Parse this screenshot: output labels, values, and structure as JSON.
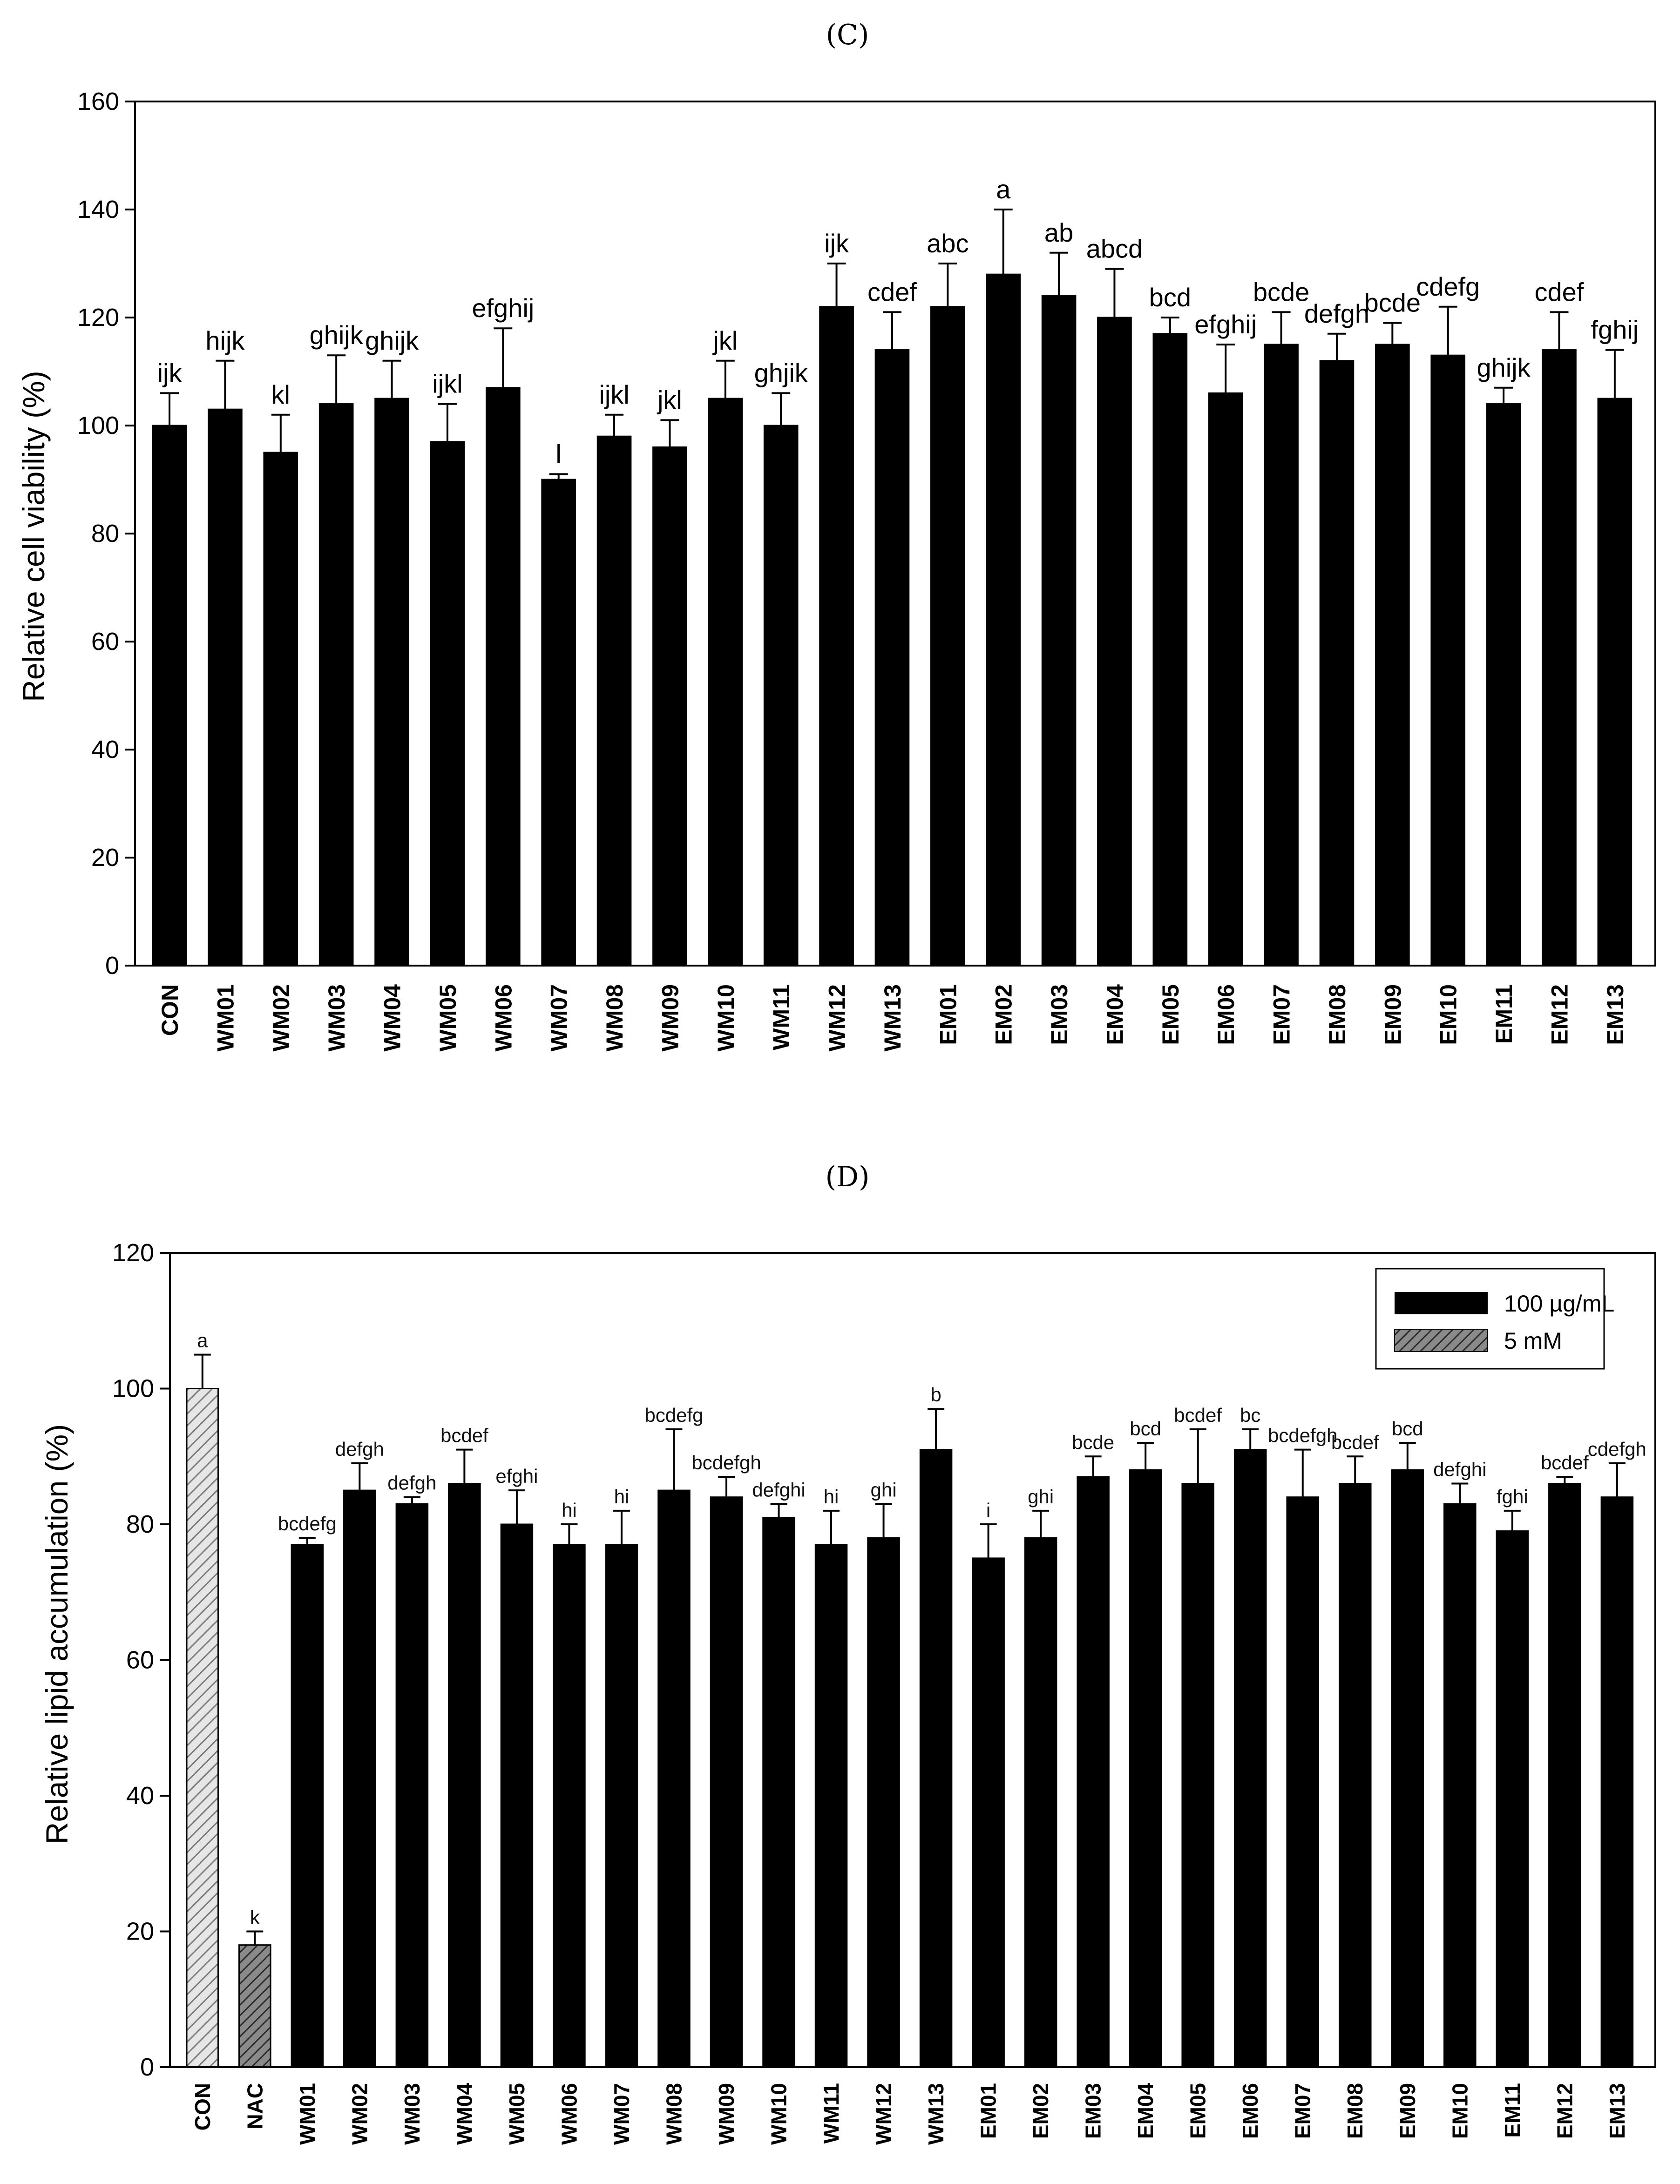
{
  "chart_data": [
    {
      "type": "bar",
      "panel": "(C)",
      "title": "",
      "xlabel": "",
      "ylabel": "Relative cell viability (%)",
      "ylim": [
        0,
        160
      ],
      "yticks": [
        0,
        20,
        40,
        60,
        80,
        100,
        120,
        140,
        160
      ],
      "grid": false,
      "legend": "none",
      "categories": [
        "CON",
        "WM01",
        "WM02",
        "WM03",
        "WM04",
        "WM05",
        "WM06",
        "WM07",
        "WM08",
        "WM09",
        "WM10",
        "WM11",
        "WM12",
        "WM13",
        "EM01",
        "EM02",
        "EM03",
        "EM04",
        "EM05",
        "EM06",
        "EM07",
        "EM08",
        "EM09",
        "EM10",
        "EM11",
        "EM12",
        "EM13"
      ],
      "values": [
        100,
        103,
        95,
        104,
        105,
        97,
        107,
        90,
        98,
        96,
        105,
        100,
        122,
        114,
        122,
        128,
        124,
        120,
        117,
        106,
        115,
        112,
        115,
        113,
        104,
        114,
        105
      ],
      "errors": [
        6,
        9,
        7,
        9,
        7,
        7,
        11,
        1,
        4,
        5,
        7,
        6,
        8,
        7,
        8,
        12,
        8,
        9,
        3,
        9,
        6,
        5,
        4,
        9,
        3,
        7,
        9
      ],
      "significance": [
        "ijk",
        "hijk",
        "kl",
        "ghijk",
        "ghijk",
        "ijkl",
        "efghij",
        "l",
        "ijkl",
        "jkl",
        "jkl",
        "ghjik",
        "ijk",
        "cdef",
        "abc",
        "a",
        "ab",
        "abcd",
        "bcd",
        "efghij",
        "bcde",
        "defgh",
        "bcde",
        "cdefg",
        "ghijk",
        "cdef",
        "fghij"
      ],
      "colors": {
        "bar": "#000000"
      }
    },
    {
      "type": "bar",
      "panel": "(D)",
      "title": "",
      "xlabel": "",
      "ylabel": "Relative lipid accumulation (%)",
      "ylim": [
        0,
        120
      ],
      "yticks": [
        0,
        20,
        40,
        60,
        80,
        100,
        120
      ],
      "grid": false,
      "legend": "top-right",
      "legend_entries": [
        {
          "label": "100 µg/mL",
          "style": "solid"
        },
        {
          "label": "5 mM",
          "style": "hatched"
        }
      ],
      "categories": [
        "CON",
        "NAC",
        "WM01",
        "WM02",
        "WM03",
        "WM04",
        "WM05",
        "WM06",
        "WM07",
        "WM08",
        "WM09",
        "WM10",
        "WM11",
        "WM12",
        "WM13",
        "EM01",
        "EM02",
        "EM03",
        "EM04",
        "EM05",
        "EM06",
        "EM07",
        "EM08",
        "EM09",
        "EM10",
        "EM11",
        "EM12",
        "EM13"
      ],
      "values": [
        100,
        18,
        77,
        85,
        83,
        86,
        80,
        77,
        77,
        85,
        84,
        81,
        77,
        78,
        91,
        75,
        78,
        87,
        88,
        86,
        91,
        84,
        86,
        88,
        83,
        79,
        86,
        84
      ],
      "errors": [
        5,
        2,
        1,
        4,
        1,
        5,
        5,
        3,
        5,
        9,
        3,
        2,
        5,
        5,
        6,
        5,
        4,
        3,
        4,
        8,
        3,
        7,
        4,
        4,
        3,
        3,
        1,
        5
      ],
      "significance": [
        "a",
        "k",
        "bcdefg",
        "defgh",
        "defgh",
        "bcdef",
        "efghi",
        "hi",
        "hi",
        "bcdefg",
        "bcdefgh",
        "defghi",
        "hi",
        "ghi",
        "b",
        "i",
        "ghi",
        "bcde",
        "bcd",
        "bcdef",
        "bc",
        "bcdefgh",
        "bcdef",
        "bcd",
        "defghi",
        "fghi",
        "bcdef",
        "cdefgh"
      ],
      "bar_styles": [
        "hatch-light",
        "hatch-dark",
        "solid",
        "solid",
        "solid",
        "solid",
        "solid",
        "solid",
        "solid",
        "solid",
        "solid",
        "solid",
        "solid",
        "solid",
        "solid",
        "solid",
        "solid",
        "solid",
        "solid",
        "solid",
        "solid",
        "solid",
        "solid",
        "solid",
        "solid",
        "solid",
        "solid",
        "solid"
      ],
      "colors": {
        "bar": "#000000",
        "hatch_light": "#bdbdbd",
        "hatch_dark": "#6e6e6e"
      }
    }
  ]
}
